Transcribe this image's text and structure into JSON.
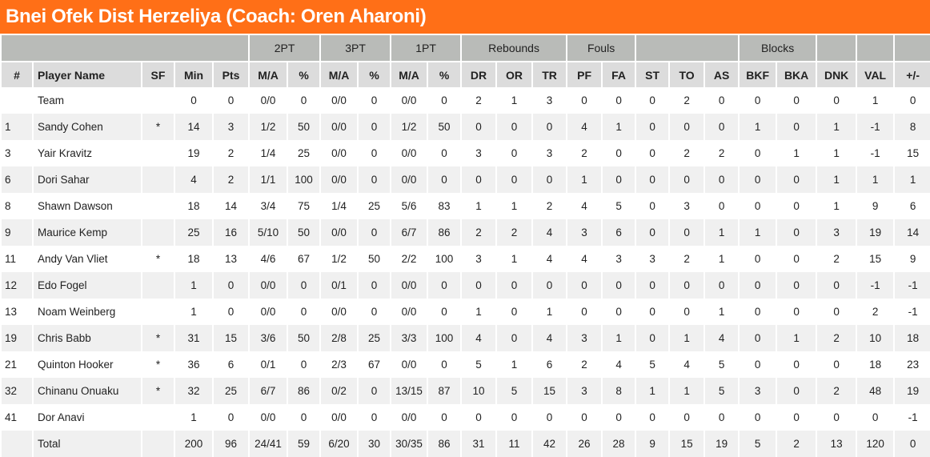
{
  "title": "Bnei Ofek Dist Herzeliya  (Coach: Oren Aharoni)",
  "groups": [
    {
      "label": "",
      "span": 5
    },
    {
      "label": "2PT",
      "span": 2
    },
    {
      "label": "3PT",
      "span": 2
    },
    {
      "label": "1PT",
      "span": 2
    },
    {
      "label": "Rebounds",
      "span": 3
    },
    {
      "label": "Fouls",
      "span": 2
    },
    {
      "label": "",
      "span": 3
    },
    {
      "label": "Blocks",
      "span": 2
    },
    {
      "label": "",
      "span": 1
    },
    {
      "label": "",
      "span": 1
    },
    {
      "label": "",
      "span": 1
    }
  ],
  "columns": [
    "#",
    "Player Name",
    "SF",
    "Min",
    "Pts",
    "M/A",
    "%",
    "M/A",
    "%",
    "M/A",
    "%",
    "DR",
    "OR",
    "TR",
    "PF",
    "FA",
    "ST",
    "TO",
    "AS",
    "BKF",
    "BKA",
    "DNK",
    "VAL",
    "+/-"
  ],
  "rows": [
    [
      "",
      "Team",
      "",
      "0",
      "0",
      "0/0",
      "0",
      "0/0",
      "0",
      "0/0",
      "0",
      "2",
      "1",
      "3",
      "0",
      "0",
      "0",
      "2",
      "0",
      "0",
      "0",
      "0",
      "1",
      "0"
    ],
    [
      "1",
      "Sandy Cohen",
      "*",
      "14",
      "3",
      "1/2",
      "50",
      "0/0",
      "0",
      "1/2",
      "50",
      "0",
      "0",
      "0",
      "4",
      "1",
      "0",
      "0",
      "0",
      "1",
      "0",
      "1",
      "-1",
      "8"
    ],
    [
      "3",
      "Yair Kravitz",
      "",
      "19",
      "2",
      "1/4",
      "25",
      "0/0",
      "0",
      "0/0",
      "0",
      "3",
      "0",
      "3",
      "2",
      "0",
      "0",
      "2",
      "2",
      "0",
      "1",
      "1",
      "-1",
      "15"
    ],
    [
      "6",
      "Dori Sahar",
      "",
      "4",
      "2",
      "1/1",
      "100",
      "0/0",
      "0",
      "0/0",
      "0",
      "0",
      "0",
      "0",
      "1",
      "0",
      "0",
      "0",
      "0",
      "0",
      "0",
      "1",
      "1",
      "1"
    ],
    [
      "8",
      "Shawn Dawson",
      "",
      "18",
      "14",
      "3/4",
      "75",
      "1/4",
      "25",
      "5/6",
      "83",
      "1",
      "1",
      "2",
      "4",
      "5",
      "0",
      "3",
      "0",
      "0",
      "0",
      "1",
      "9",
      "6"
    ],
    [
      "9",
      "Maurice Kemp",
      "",
      "25",
      "16",
      "5/10",
      "50",
      "0/0",
      "0",
      "6/7",
      "86",
      "2",
      "2",
      "4",
      "3",
      "6",
      "0",
      "0",
      "1",
      "1",
      "0",
      "3",
      "19",
      "14"
    ],
    [
      "11",
      "Andy Van Vliet",
      "*",
      "18",
      "13",
      "4/6",
      "67",
      "1/2",
      "50",
      "2/2",
      "100",
      "3",
      "1",
      "4",
      "4",
      "3",
      "3",
      "2",
      "1",
      "0",
      "0",
      "2",
      "15",
      "9"
    ],
    [
      "12",
      "Edo Fogel",
      "",
      "1",
      "0",
      "0/0",
      "0",
      "0/1",
      "0",
      "0/0",
      "0",
      "0",
      "0",
      "0",
      "0",
      "0",
      "0",
      "0",
      "0",
      "0",
      "0",
      "0",
      "-1",
      "-1"
    ],
    [
      "13",
      "Noam Weinberg",
      "",
      "1",
      "0",
      "0/0",
      "0",
      "0/0",
      "0",
      "0/0",
      "0",
      "1",
      "0",
      "1",
      "0",
      "0",
      "0",
      "0",
      "1",
      "0",
      "0",
      "0",
      "2",
      "-1"
    ],
    [
      "19",
      "Chris Babb",
      "*",
      "31",
      "15",
      "3/6",
      "50",
      "2/8",
      "25",
      "3/3",
      "100",
      "4",
      "0",
      "4",
      "3",
      "1",
      "0",
      "1",
      "4",
      "0",
      "1",
      "2",
      "10",
      "18"
    ],
    [
      "21",
      "Quinton Hooker",
      "*",
      "36",
      "6",
      "0/1",
      "0",
      "2/3",
      "67",
      "0/0",
      "0",
      "5",
      "1",
      "6",
      "2",
      "4",
      "5",
      "4",
      "5",
      "0",
      "0",
      "0",
      "18",
      "23"
    ],
    [
      "32",
      "Chinanu Onuaku",
      "*",
      "32",
      "25",
      "6/7",
      "86",
      "0/2",
      "0",
      "13/15",
      "87",
      "10",
      "5",
      "15",
      "3",
      "8",
      "1",
      "1",
      "5",
      "3",
      "0",
      "2",
      "48",
      "19"
    ],
    [
      "41",
      "Dor Anavi",
      "",
      "1",
      "0",
      "0/0",
      "0",
      "0/0",
      "0",
      "0/0",
      "0",
      "0",
      "0",
      "0",
      "0",
      "0",
      "0",
      "0",
      "0",
      "0",
      "0",
      "0",
      "0",
      "-1"
    ],
    [
      "",
      "Total",
      "",
      "200",
      "96",
      "24/41",
      "59",
      "6/20",
      "30",
      "30/35",
      "86",
      "31",
      "11",
      "42",
      "26",
      "28",
      "9",
      "15",
      "19",
      "5",
      "2",
      "13",
      "120",
      "0"
    ]
  ]
}
